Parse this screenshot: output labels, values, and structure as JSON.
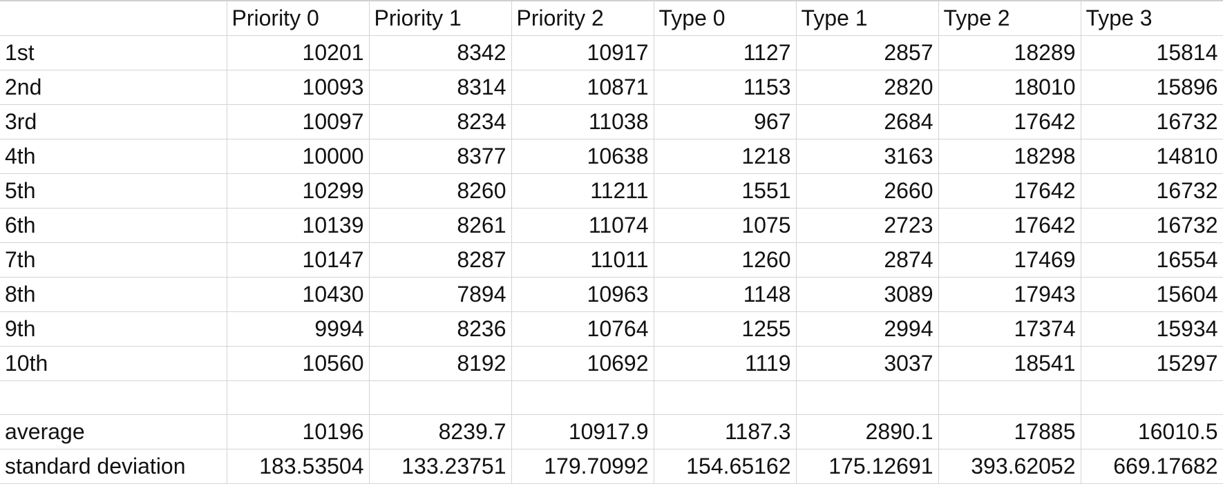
{
  "table": {
    "headers": [
      "",
      "Priority 0",
      "Priority 1",
      "Priority 2",
      "Type 0",
      "Type 1",
      "Type 2",
      "Type 3"
    ],
    "rows": [
      {
        "label": "1st",
        "values": [
          "10201",
          "8342",
          "10917",
          "1127",
          "2857",
          "18289",
          "15814"
        ]
      },
      {
        "label": "2nd",
        "values": [
          "10093",
          "8314",
          "10871",
          "1153",
          "2820",
          "18010",
          "15896"
        ]
      },
      {
        "label": "3rd",
        "values": [
          "10097",
          "8234",
          "11038",
          "967",
          "2684",
          "17642",
          "16732"
        ]
      },
      {
        "label": "4th",
        "values": [
          "10000",
          "8377",
          "10638",
          "1218",
          "3163",
          "18298",
          "14810"
        ]
      },
      {
        "label": "5th",
        "values": [
          "10299",
          "8260",
          "11211",
          "1551",
          "2660",
          "17642",
          "16732"
        ]
      },
      {
        "label": "6th",
        "values": [
          "10139",
          "8261",
          "11074",
          "1075",
          "2723",
          "17642",
          "16732"
        ]
      },
      {
        "label": "7th",
        "values": [
          "10147",
          "8287",
          "11011",
          "1260",
          "2874",
          "17469",
          "16554"
        ]
      },
      {
        "label": "8th",
        "values": [
          "10430",
          "7894",
          "10963",
          "1148",
          "3089",
          "17943",
          "15604"
        ]
      },
      {
        "label": "9th",
        "values": [
          "9994",
          "8236",
          "10764",
          "1255",
          "2994",
          "17374",
          "15934"
        ]
      },
      {
        "label": "10th",
        "values": [
          "10560",
          "8192",
          "10692",
          "1119",
          "3037",
          "18541",
          "15297"
        ]
      },
      {
        "label": "",
        "values": [
          "",
          "",
          "",
          "",
          "",
          "",
          ""
        ]
      },
      {
        "label": "average",
        "values": [
          "10196",
          "8239.7",
          "10917.9",
          "1187.3",
          "2890.1",
          "17885",
          "16010.5"
        ]
      },
      {
        "label": "standard deviation",
        "values": [
          "183.53504",
          "133.23751",
          "179.70992",
          "154.65162",
          "175.12691",
          "393.62052",
          "669.17682"
        ]
      }
    ]
  }
}
